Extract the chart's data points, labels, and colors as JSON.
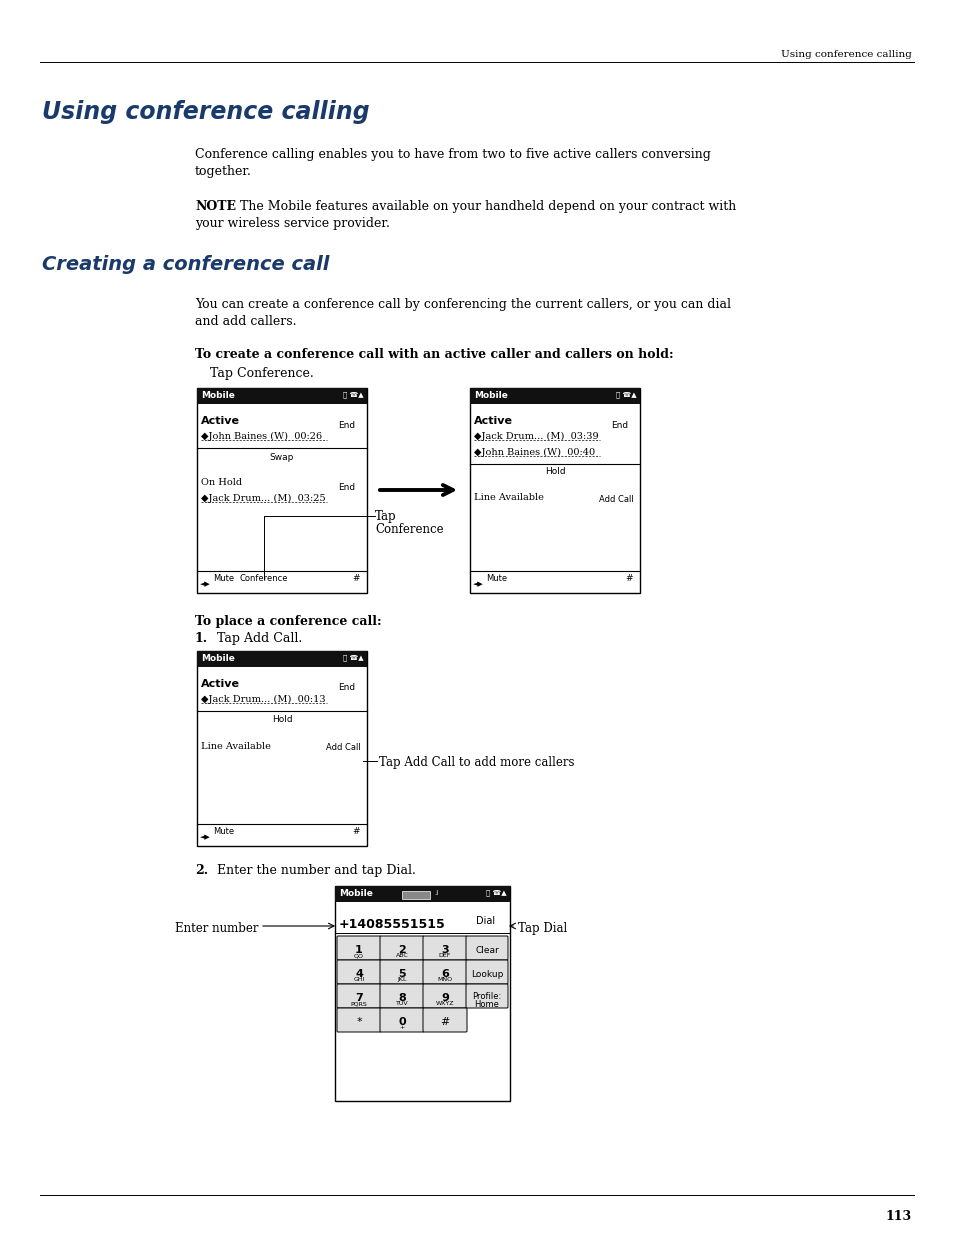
{
  "page_header_right": "Using conference calling",
  "page_number": "113",
  "main_title": "Using conference calling",
  "main_title_color": "#1a3a6b",
  "section_title": "Creating a conference call",
  "section_title_color": "#1a3a6b",
  "body_text_color": "#000000",
  "background_color": "#ffffff",
  "para1_line1": "Conference calling enables you to have from two to five active callers conversing",
  "para1_line2": "together.",
  "note_bold": "NOTE",
  "note_line1": "   The Mobile features available on your handheld depend on your contract with",
  "note_line2": "your wireless service provider.",
  "para2_line1": "You can create a conference call by conferencing the current callers, or you can dial",
  "para2_line2": "and add callers.",
  "step_label1": "To create a conference call with an active caller and callers on hold:",
  "step_text1": "Tap Conference.",
  "step_label2": "To place a conference call:",
  "step1_num": "1.",
  "step1_text": "Tap Add Call.",
  "step2_num": "2.",
  "step2_text": "Enter the number and tap Dial.",
  "annotation1_line1": "Tap",
  "annotation1_line2": "Conference",
  "annotation2": "Tap Add Call to add more callers",
  "annotation3_left": "Enter number",
  "annotation3_right": "Tap Dial"
}
